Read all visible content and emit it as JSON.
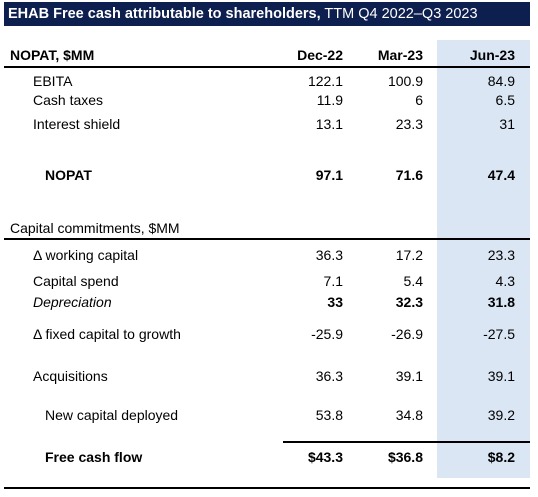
{
  "title": {
    "bold": "EHAB Free cash attributable to shareholders,",
    "rest": "TTM Q4 2022–Q3 2023"
  },
  "header": {
    "label": "NOPAT, $MM",
    "columns": [
      "Dec-22",
      "Mar-23",
      "Jun-23"
    ]
  },
  "section": "Capital commitments, $MM",
  "rows": [
    {
      "label": "EBITA",
      "values": [
        "122.1",
        "100.9",
        "84.9"
      ]
    },
    {
      "label": "Cash taxes",
      "values": [
        "11.9",
        "6",
        "6.5"
      ]
    },
    {
      "label": "Interest shield",
      "values": [
        "13.1",
        "23.3",
        "31"
      ]
    },
    {
      "label": "NOPAT",
      "values": [
        "97.1",
        "71.6",
        "47.4"
      ]
    },
    {
      "label": "Δ working capital",
      "values": [
        "36.3",
        "17.2",
        "23.3"
      ]
    },
    {
      "label": "Capital spend",
      "values": [
        "7.1",
        "5.4",
        "4.3"
      ]
    },
    {
      "label": "Depreciation",
      "values": [
        "33",
        "32.3",
        "31.8"
      ]
    },
    {
      "label": "Δ fixed capital to growth",
      "values": [
        "-25.9",
        "-26.9",
        "-27.5"
      ]
    },
    {
      "label": "Acquisitions",
      "values": [
        "36.3",
        "39.1",
        "39.1"
      ]
    },
    {
      "label": "New capital deployed",
      "values": [
        "53.8",
        "34.8",
        "39.2"
      ]
    },
    {
      "label": "Free cash flow",
      "values": [
        "$43.3",
        "$36.8",
        "$8.2"
      ]
    }
  ]
}
